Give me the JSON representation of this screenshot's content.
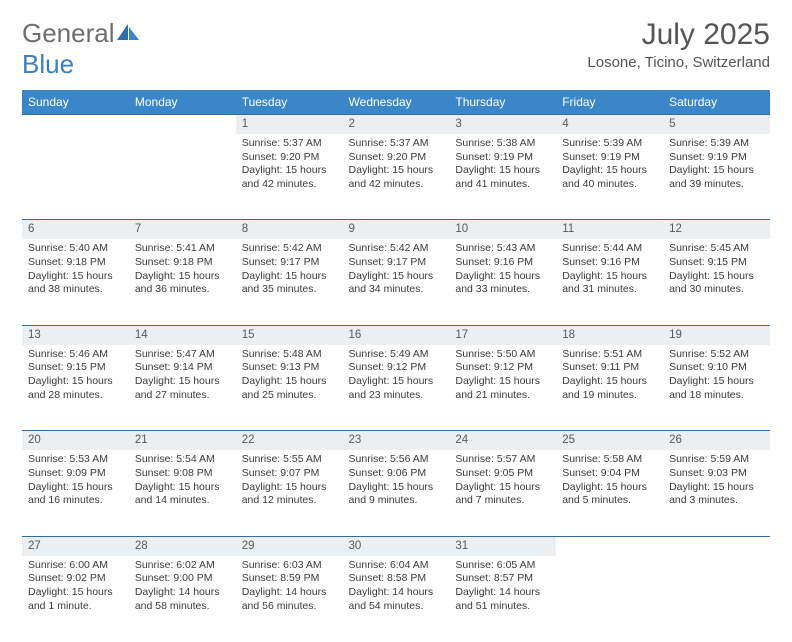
{
  "logo": {
    "word1": "General",
    "word2": "Blue"
  },
  "title": "July 2025",
  "location": "Losone, Ticino, Switzerland",
  "header_bg": "#3a86c8",
  "weekdays": [
    "Sunday",
    "Monday",
    "Tuesday",
    "Wednesday",
    "Thursday",
    "Friday",
    "Saturday"
  ],
  "leading_blanks": 2,
  "days": [
    {
      "n": 1,
      "sr": "5:37 AM",
      "ss": "9:20 PM",
      "dl": "15 hours and 42 minutes."
    },
    {
      "n": 2,
      "sr": "5:37 AM",
      "ss": "9:20 PM",
      "dl": "15 hours and 42 minutes."
    },
    {
      "n": 3,
      "sr": "5:38 AM",
      "ss": "9:19 PM",
      "dl": "15 hours and 41 minutes."
    },
    {
      "n": 4,
      "sr": "5:39 AM",
      "ss": "9:19 PM",
      "dl": "15 hours and 40 minutes."
    },
    {
      "n": 5,
      "sr": "5:39 AM",
      "ss": "9:19 PM",
      "dl": "15 hours and 39 minutes."
    },
    {
      "n": 6,
      "sr": "5:40 AM",
      "ss": "9:18 PM",
      "dl": "15 hours and 38 minutes."
    },
    {
      "n": 7,
      "sr": "5:41 AM",
      "ss": "9:18 PM",
      "dl": "15 hours and 36 minutes."
    },
    {
      "n": 8,
      "sr": "5:42 AM",
      "ss": "9:17 PM",
      "dl": "15 hours and 35 minutes."
    },
    {
      "n": 9,
      "sr": "5:42 AM",
      "ss": "9:17 PM",
      "dl": "15 hours and 34 minutes."
    },
    {
      "n": 10,
      "sr": "5:43 AM",
      "ss": "9:16 PM",
      "dl": "15 hours and 33 minutes."
    },
    {
      "n": 11,
      "sr": "5:44 AM",
      "ss": "9:16 PM",
      "dl": "15 hours and 31 minutes."
    },
    {
      "n": 12,
      "sr": "5:45 AM",
      "ss": "9:15 PM",
      "dl": "15 hours and 30 minutes."
    },
    {
      "n": 13,
      "sr": "5:46 AM",
      "ss": "9:15 PM",
      "dl": "15 hours and 28 minutes."
    },
    {
      "n": 14,
      "sr": "5:47 AM",
      "ss": "9:14 PM",
      "dl": "15 hours and 27 minutes."
    },
    {
      "n": 15,
      "sr": "5:48 AM",
      "ss": "9:13 PM",
      "dl": "15 hours and 25 minutes."
    },
    {
      "n": 16,
      "sr": "5:49 AM",
      "ss": "9:12 PM",
      "dl": "15 hours and 23 minutes."
    },
    {
      "n": 17,
      "sr": "5:50 AM",
      "ss": "9:12 PM",
      "dl": "15 hours and 21 minutes."
    },
    {
      "n": 18,
      "sr": "5:51 AM",
      "ss": "9:11 PM",
      "dl": "15 hours and 19 minutes."
    },
    {
      "n": 19,
      "sr": "5:52 AM",
      "ss": "9:10 PM",
      "dl": "15 hours and 18 minutes."
    },
    {
      "n": 20,
      "sr": "5:53 AM",
      "ss": "9:09 PM",
      "dl": "15 hours and 16 minutes."
    },
    {
      "n": 21,
      "sr": "5:54 AM",
      "ss": "9:08 PM",
      "dl": "15 hours and 14 minutes."
    },
    {
      "n": 22,
      "sr": "5:55 AM",
      "ss": "9:07 PM",
      "dl": "15 hours and 12 minutes."
    },
    {
      "n": 23,
      "sr": "5:56 AM",
      "ss": "9:06 PM",
      "dl": "15 hours and 9 minutes."
    },
    {
      "n": 24,
      "sr": "5:57 AM",
      "ss": "9:05 PM",
      "dl": "15 hours and 7 minutes."
    },
    {
      "n": 25,
      "sr": "5:58 AM",
      "ss": "9:04 PM",
      "dl": "15 hours and 5 minutes."
    },
    {
      "n": 26,
      "sr": "5:59 AM",
      "ss": "9:03 PM",
      "dl": "15 hours and 3 minutes."
    },
    {
      "n": 27,
      "sr": "6:00 AM",
      "ss": "9:02 PM",
      "dl": "15 hours and 1 minute."
    },
    {
      "n": 28,
      "sr": "6:02 AM",
      "ss": "9:00 PM",
      "dl": "14 hours and 58 minutes."
    },
    {
      "n": 29,
      "sr": "6:03 AM",
      "ss": "8:59 PM",
      "dl": "14 hours and 56 minutes."
    },
    {
      "n": 30,
      "sr": "6:04 AM",
      "ss": "8:58 PM",
      "dl": "14 hours and 54 minutes."
    },
    {
      "n": 31,
      "sr": "6:05 AM",
      "ss": "8:57 PM",
      "dl": "14 hours and 51 minutes."
    }
  ],
  "labels": {
    "sunrise": "Sunrise:",
    "sunset": "Sunset:",
    "daylight": "Daylight:"
  }
}
